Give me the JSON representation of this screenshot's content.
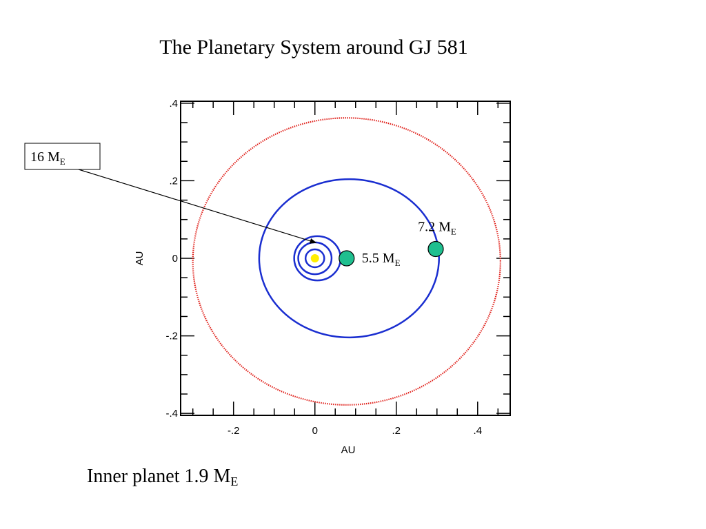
{
  "slide": {
    "title": "The Planetary System around GJ 581",
    "caption_main": "Inner planet 1.9 M",
    "caption_sub": "E"
  },
  "chart_data": {
    "type": "scatter",
    "xlabel": "AU",
    "ylabel": "AU",
    "xlim": [
      -0.33,
      0.48
    ],
    "ylim": [
      -0.405,
      0.405
    ],
    "x_ticks": [
      -0.2,
      0,
      0.2,
      0.4
    ],
    "x_tick_labels": [
      "-.2",
      "0",
      ".2",
      ".4"
    ],
    "y_ticks": [
      -0.4,
      -0.2,
      0,
      0.2,
      0.4
    ],
    "y_tick_labels": [
      "-.4",
      "-.2",
      "0",
      ".2",
      ".4"
    ],
    "x_minor_step": 0.05,
    "y_minor_step": 0.05,
    "star": {
      "x": 0,
      "y": 0,
      "color": "#ffee00"
    },
    "orbits": [
      {
        "cx": 0.0,
        "cy": 0.0,
        "rx": 0.041,
        "ry": 0.041,
        "color": "#1a2ed0",
        "style": "solid"
      },
      {
        "cx": 0.0,
        "cy": 0.0,
        "rx": 0.023,
        "ry": 0.023,
        "color": "#1a2ed0",
        "style": "solid"
      },
      {
        "cx": 0.006,
        "cy": 0.0,
        "rx": 0.057,
        "ry": 0.057,
        "color": "#1a2ed0",
        "style": "solid"
      },
      {
        "cx": 0.084,
        "cy": 0.0,
        "rx": 0.221,
        "ry": 0.204,
        "color": "#1a2ed0",
        "style": "solid"
      },
      {
        "cx": 0.078,
        "cy": -0.008,
        "rx": 0.378,
        "ry": 0.37,
        "color": "#e0201a",
        "style": "dotted"
      }
    ],
    "planets": [
      {
        "x": 0.078,
        "y": 0.0,
        "mass_label": "5.5 M",
        "mass_sub": "E",
        "color": "#1fbf8f"
      },
      {
        "x": 0.297,
        "y": 0.024,
        "mass_label": "7.2 M",
        "mass_sub": "E",
        "color": "#1fbf8f"
      }
    ],
    "callout": {
      "label": "16 M",
      "label_sub": "E",
      "target_x": 0.003,
      "target_y": 0.04
    }
  }
}
